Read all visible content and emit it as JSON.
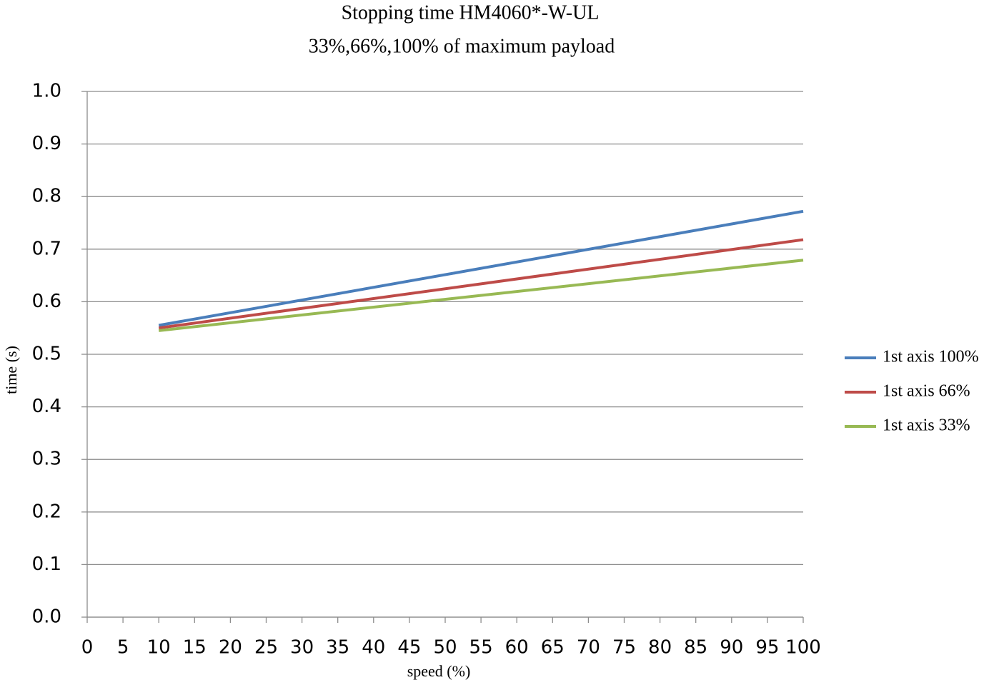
{
  "chart_data": {
    "type": "line",
    "title": "Stopping time HM4060*-W-UL",
    "subtitle": "33%,66%,100% of maximum payload",
    "x_label": "speed (%)",
    "y_label": "time (s)",
    "x": [
      10,
      100
    ],
    "series": [
      {
        "name": "1st axis 100%",
        "color": "#4a7ebb",
        "values": [
          0.555,
          0.772
        ]
      },
      {
        "name": "1st axis 66%",
        "color": "#be4b48",
        "values": [
          0.55,
          0.718
        ]
      },
      {
        "name": "1st axis 33%",
        "color": "#98b954",
        "values": [
          0.545,
          0.679
        ]
      }
    ],
    "xlim": [
      0,
      100
    ],
    "xticks": [
      0,
      5,
      10,
      15,
      20,
      25,
      30,
      35,
      40,
      45,
      50,
      55,
      60,
      65,
      70,
      75,
      80,
      85,
      90,
      95,
      100
    ],
    "ylim": [
      0,
      1
    ],
    "yticks": [
      {
        "value": 0,
        "label": "0.0"
      },
      0.1,
      0.2,
      0.3,
      0.4,
      0.5,
      0.6,
      0.7,
      0.8,
      0.9,
      {
        "value": 1,
        "label": "1.0"
      }
    ],
    "grid": true,
    "legend": "right"
  }
}
